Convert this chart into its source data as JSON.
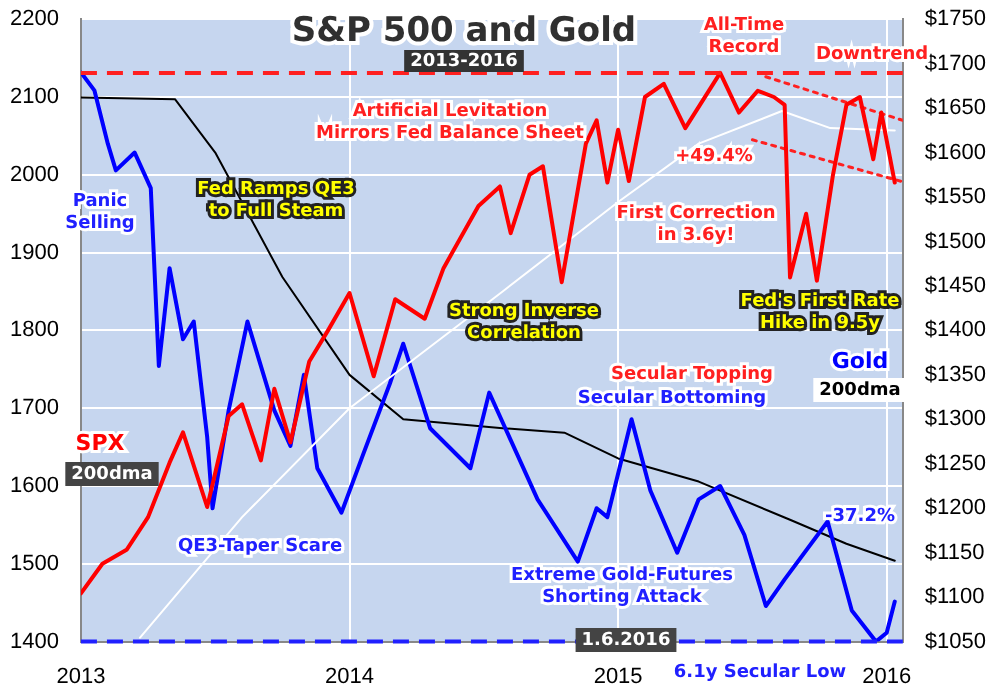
{
  "chart_data": {
    "type": "line",
    "title": "S&P 500 and Gold",
    "subtitle": "2013-2016",
    "xlim": [
      2013,
      2016.06
    ],
    "xticks": [
      2013,
      2014,
      2015,
      2016
    ],
    "ylim": [
      1400,
      2200
    ],
    "yticks": [
      1400,
      1500,
      1600,
      1700,
      1800,
      1900,
      2000,
      2100,
      2200
    ],
    "y2lim": [
      1050,
      1750
    ],
    "y2ticks": [
      {
        "value": 1050,
        "label": "$1050"
      },
      {
        "value": 1100,
        "label": "$1100"
      },
      {
        "value": 1150,
        "label": "$1150"
      },
      {
        "value": 1200,
        "label": "$1200"
      },
      {
        "value": 1250,
        "label": "$1250"
      },
      {
        "value": 1300,
        "label": "$1300"
      },
      {
        "value": 1350,
        "label": "$1350"
      },
      {
        "value": 1400,
        "label": "$1400"
      },
      {
        "value": 1450,
        "label": "$1450"
      },
      {
        "value": 1500,
        "label": "$1500"
      },
      {
        "value": 1550,
        "label": "$1550"
      },
      {
        "value": 1600,
        "label": "$1600"
      },
      {
        "value": 1650,
        "label": "$1650"
      },
      {
        "value": 1700,
        "label": "$1700"
      },
      {
        "value": 1750,
        "label": "$1750"
      }
    ],
    "grid": true,
    "legend": false,
    "marker": "none",
    "series": [
      {
        "name": "SPX",
        "color": "#ff0000",
        "x": [
          2013.0,
          2013.08,
          2013.17,
          2013.25,
          2013.33,
          2013.38,
          2013.47,
          2013.55,
          2013.6,
          2013.67,
          2013.72,
          2013.78,
          2013.85,
          2013.92,
          2014.0,
          2014.09,
          2014.17,
          2014.28,
          2014.35,
          2014.48,
          2014.56,
          2014.6,
          2014.67,
          2014.72,
          2014.79,
          2014.88,
          2014.92,
          2014.96,
          2015.0,
          2015.04,
          2015.1,
          2015.17,
          2015.25,
          2015.38,
          2015.45,
          2015.52,
          2015.58,
          2015.62,
          2015.64,
          2015.7,
          2015.74,
          2015.8,
          2015.85,
          2015.9,
          2015.95,
          2015.98,
          2016.0,
          2016.03
        ],
        "values": [
          1462,
          1500,
          1518,
          1560,
          1630,
          1669,
          1573,
          1690,
          1705,
          1633,
          1725,
          1656,
          1760,
          1800,
          1848,
          1741,
          1840,
          1815,
          1880,
          1960,
          1985,
          1925,
          2000,
          2011,
          1862,
          2040,
          2070,
          1990,
          2058,
          1992,
          2100,
          2117,
          2060,
          2131,
          2080,
          2108,
          2100,
          2090,
          1868,
          1950,
          1864,
          2000,
          2090,
          2100,
          2020,
          2080,
          2044,
          1990
        ]
      },
      {
        "color": "#ffffff",
        "x": [
          2013.22,
          2013.6,
          2014.0,
          2014.57,
          2015.0,
          2015.3,
          2015.61,
          2015.79,
          2016.03
        ],
        "values": [
          1405,
          1560,
          1700,
          1850,
          1965,
          2040,
          2082,
          2060,
          2057
        ]
      },
      {
        "name": "Gold",
        "color": "#0000ff",
        "axis": "y2",
        "x": [
          2013.0,
          2013.05,
          2013.1,
          2013.13,
          2013.2,
          2013.26,
          2013.29,
          2013.33,
          2013.38,
          2013.42,
          2013.47,
          2013.49,
          2013.55,
          2013.62,
          2013.66,
          2013.72,
          2013.78,
          2013.83,
          2013.88,
          2013.97,
          2014.05,
          2014.15,
          2014.2,
          2014.3,
          2014.45,
          2014.52,
          2014.58,
          2014.7,
          2014.85,
          2014.92,
          2014.96,
          2015.05,
          2015.12,
          2015.22,
          2015.3,
          2015.38,
          2015.47,
          2015.55,
          2015.62,
          2015.78,
          2015.87,
          2015.96,
          2016.0,
          2016.03
        ],
        "values": [
          1690,
          1670,
          1610,
          1580,
          1600,
          1560,
          1360,
          1470,
          1390,
          1410,
          1280,
          1200,
          1310,
          1410,
          1370,
          1310,
          1270,
          1350,
          1245,
          1195,
          1260,
          1340,
          1385,
          1290,
          1245,
          1330,
          1290,
          1210,
          1140,
          1200,
          1190,
          1300,
          1220,
          1150,
          1210,
          1225,
          1170,
          1090,
          1120,
          1185,
          1085,
          1050,
          1060,
          1095
        ]
      },
      {
        "color": "#000000",
        "axis": "y2",
        "x": [
          2013.0,
          2013.35,
          2013.5,
          2013.75,
          2014.0,
          2014.2,
          2014.57,
          2014.8,
          2015.0,
          2015.3,
          2015.64,
          2015.85,
          2016.03
        ],
        "values": [
          1662,
          1660,
          1600,
          1460,
          1350,
          1300,
          1290,
          1285,
          1256,
          1230,
          1187,
          1160,
          1141
        ]
      },
      {
        "color": "#ff2020",
        "line_style": "dotted",
        "x": [
          2015.55,
          2016.06
        ],
        "values": [
          2126,
          2070
        ]
      },
      {
        "color": "#ff2020",
        "line_style": "dotted",
        "x": [
          2015.5,
          2016.06
        ],
        "values": [
          2045,
          1991
        ]
      }
    ],
    "ref_lines": [
      {
        "axis": "y",
        "value": 2131,
        "color": "#ff2020",
        "line_style": "dashed"
      },
      {
        "axis": "y2",
        "value": 1050,
        "color": "#2020ff",
        "line_style": "dashed"
      }
    ],
    "annotations": [
      "Fed Ramps QE3\nto Full Steam",
      "Panic\nSelling",
      "Artificial Levitation\nMirrors Fed Balance Sheet",
      "All-Time\nRecord",
      "Downtrend",
      "+49.4%",
      "First Correction\nin 3.6y!",
      "Strong Inverse\nCorrelation",
      "Fed's First Rate\nHike in 9.5y",
      "200dma",
      "Secular Topping",
      "Secular Bottoming",
      "QE3-Taper Scare",
      "Extreme Gold-Futures\nShorting Attack",
      "-37.2%",
      "6.1y Secular Low",
      "1.6.2016",
      "200dma"
    ]
  }
}
